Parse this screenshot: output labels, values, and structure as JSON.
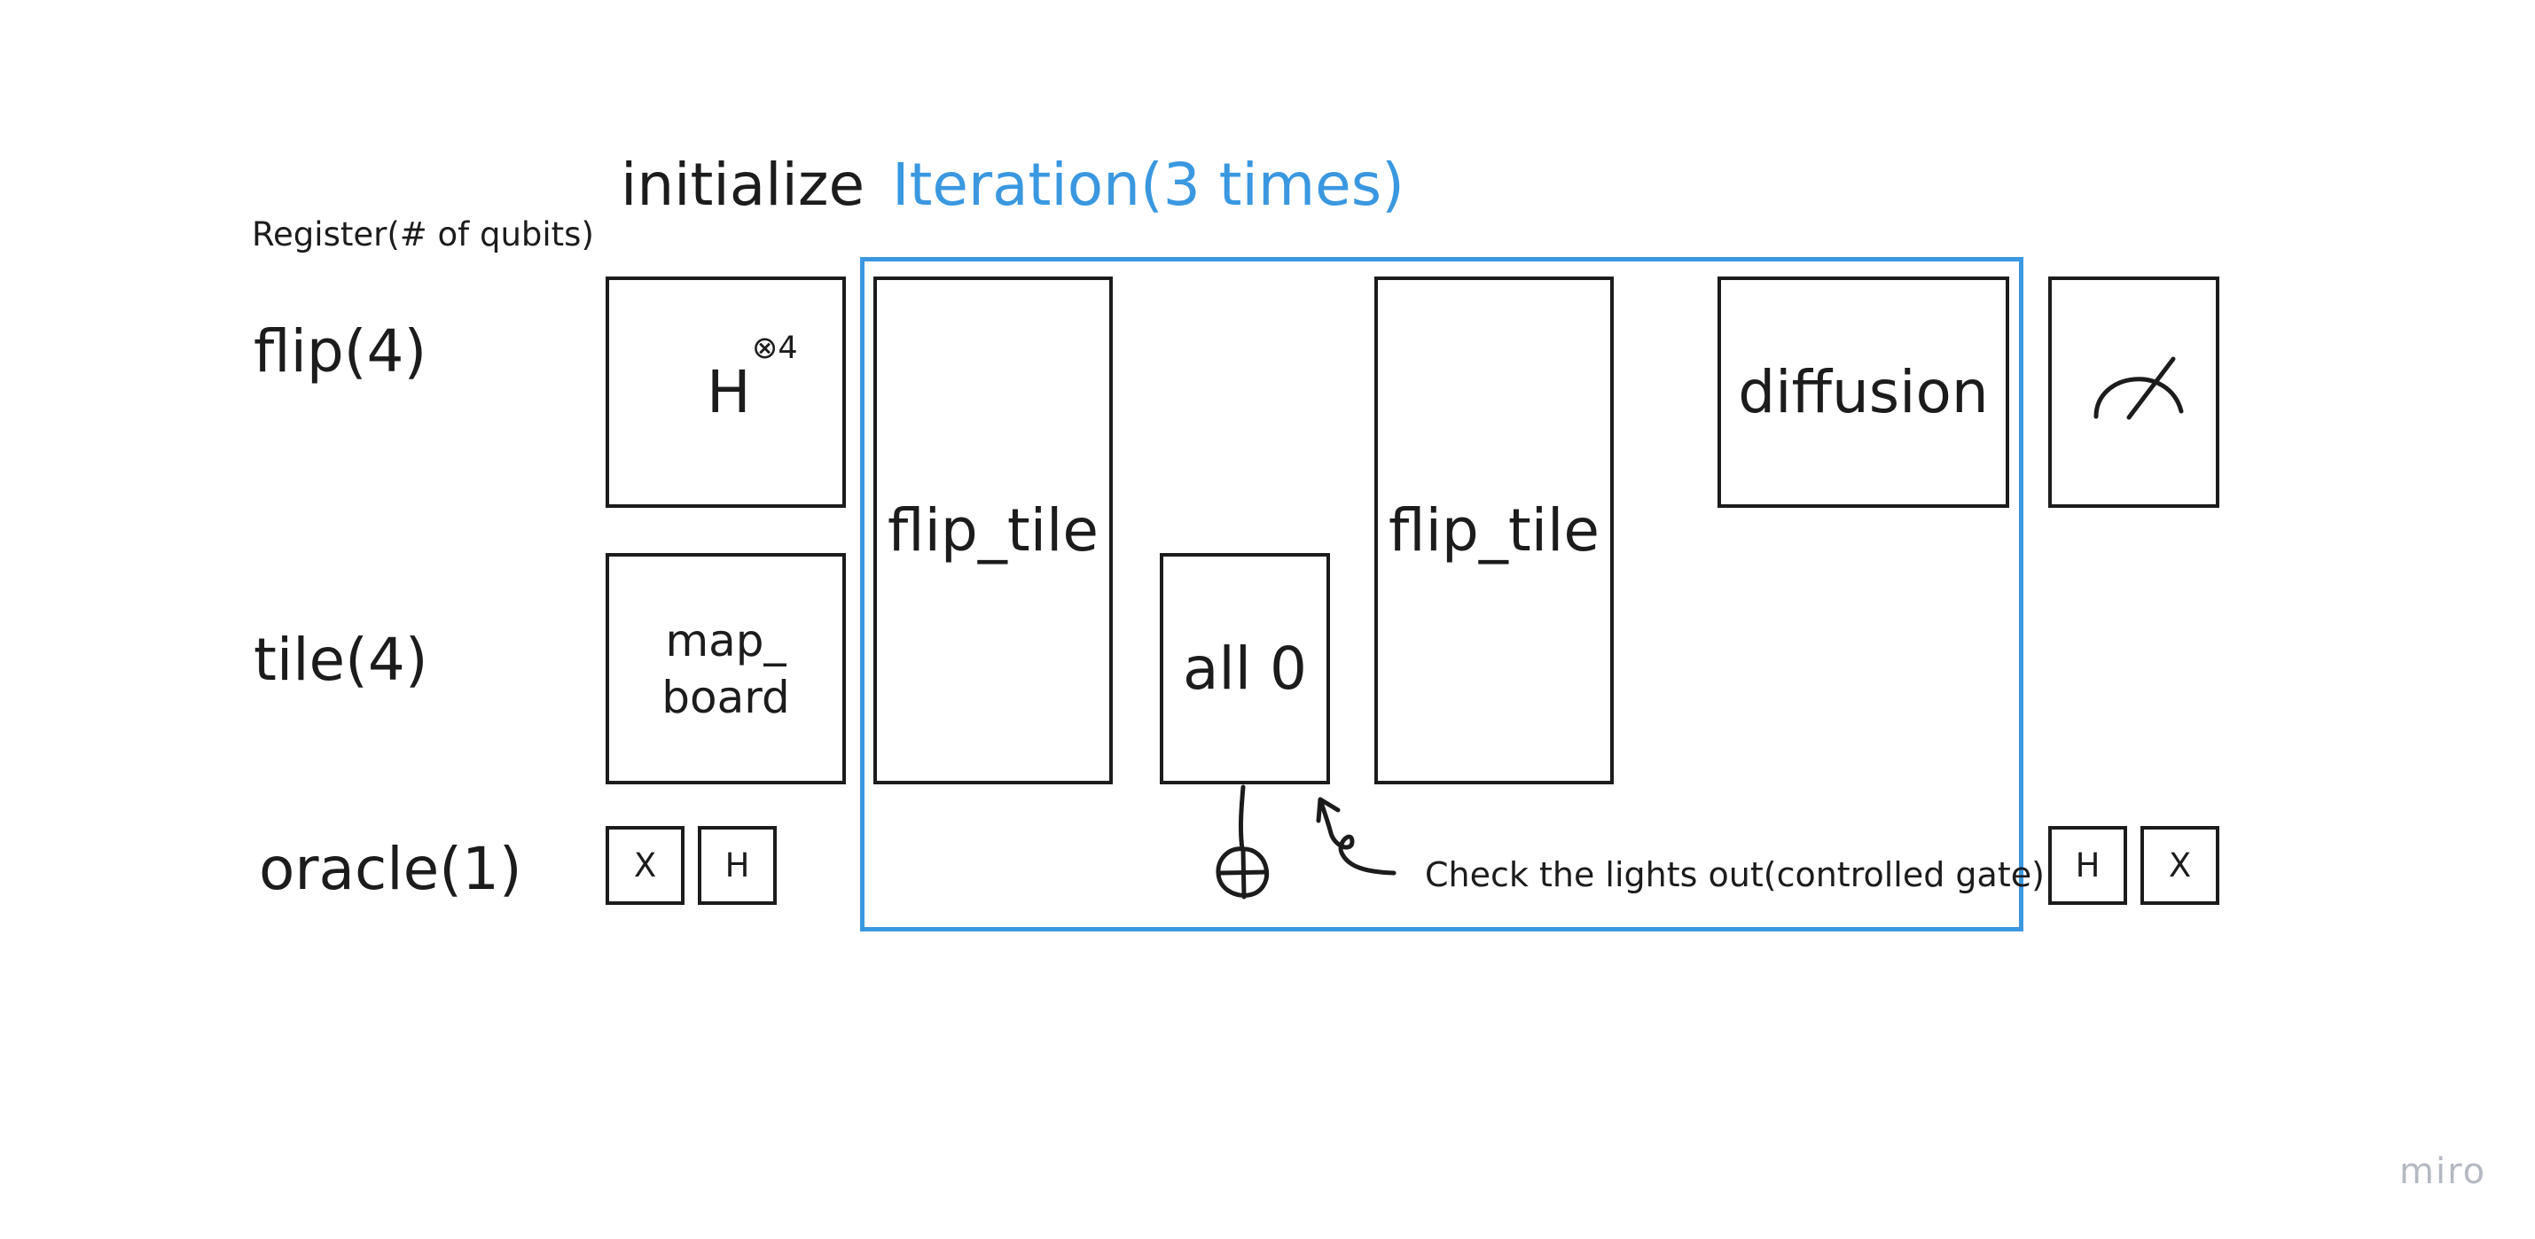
{
  "header": {
    "register_label": "Register(# of qubits)",
    "initialize_label": "initialize",
    "iteration_label": "Iteration(3 times)"
  },
  "registers": [
    {
      "label": "flip(4)"
    },
    {
      "label": "tile(4)"
    },
    {
      "label": "oracle(1)"
    }
  ],
  "gates": {
    "hadamard": {
      "label": "H",
      "superscript": "⊗4"
    },
    "map_board": {
      "line1": "map_",
      "line2": "board"
    },
    "oracle_x_left": "X",
    "oracle_h_left": "H",
    "flip_tile_1": "flip_tile",
    "all_zero": "all 0",
    "flip_tile_2": "flip_tile",
    "diffusion": "diffusion",
    "oracle_h_right": "H",
    "oracle_x_right": "X"
  },
  "annotation": {
    "text": "Check the lights out(controlled gate)"
  },
  "watermark": "miro",
  "colors": {
    "iteration_accent": "#3a98e0",
    "stroke": "#1c1c1c",
    "watermark": "#b4b9c2"
  },
  "icons": {
    "measurement": "measurement-meter-icon",
    "controlled_target": "cnot-target-icon",
    "annotation_arrow": "curved-arrow-icon"
  }
}
